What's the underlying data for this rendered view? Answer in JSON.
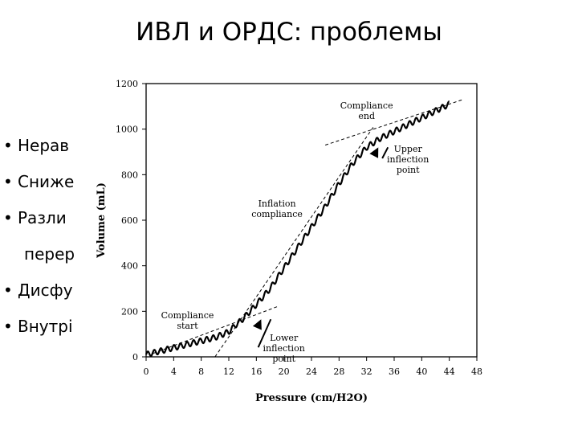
{
  "slide": {
    "title": "ИВЛ и ОРДС: проблемы",
    "bullets": [
      {
        "text": "Нерав"
      },
      {
        "text": "Сниже"
      },
      {
        "text": "Разли"
      },
      {
        "text": "перер",
        "continuation": true
      },
      {
        "text": "Дисфу"
      },
      {
        "text": "Внутрі"
      }
    ]
  },
  "chart_data": {
    "type": "line",
    "xlabel": "Pressure (cm/H2O)",
    "ylabel": "Volume (mL)",
    "xlim": [
      0,
      48
    ],
    "ylim": [
      0,
      1200
    ],
    "x_ticks": [
      "0",
      "4",
      "8",
      "12",
      "16",
      "20",
      "24",
      "28",
      "32",
      "36",
      "40",
      "44",
      "48"
    ],
    "y_ticks": [
      "0",
      "200",
      "400",
      "600",
      "800",
      "1000",
      "1200"
    ],
    "series": [
      {
        "values_xy": [
          [
            0,
            10
          ],
          [
            2,
            25
          ],
          [
            4,
            40
          ],
          [
            6,
            55
          ],
          [
            8,
            70
          ],
          [
            10,
            85
          ],
          [
            12,
            110
          ],
          [
            13,
            140
          ],
          [
            14,
            165
          ],
          [
            16,
            230
          ],
          [
            18,
            300
          ],
          [
            20,
            390
          ],
          [
            22,
            480
          ],
          [
            24,
            570
          ],
          [
            26,
            660
          ],
          [
            28,
            760
          ],
          [
            30,
            850
          ],
          [
            32,
            920
          ],
          [
            34,
            960
          ],
          [
            36,
            990
          ],
          [
            38,
            1020
          ],
          [
            40,
            1050
          ],
          [
            42,
            1080
          ],
          [
            44,
            1110
          ]
        ]
      }
    ],
    "tangent_lines": [
      {
        "from": [
          1,
          15
        ],
        "to": [
          19,
          220
        ]
      },
      {
        "from": [
          10,
          0
        ],
        "to": [
          33,
          1010
        ]
      },
      {
        "from": [
          26,
          930
        ],
        "to": [
          46,
          1130
        ]
      }
    ],
    "annotations": [
      {
        "text": [
          "Compliance",
          "end"
        ],
        "at": [
          32,
          1090
        ]
      },
      {
        "text": [
          "Upper",
          "inflection",
          "point"
        ],
        "at": [
          38,
          900
        ],
        "arrow_to": [
          33,
          920
        ]
      },
      {
        "text": [
          "Inflation",
          "compliance"
        ],
        "at": [
          19,
          660
        ]
      },
      {
        "text": [
          "Compliance",
          "start"
        ],
        "at": [
          6,
          170
        ]
      },
      {
        "text": [
          "Lower",
          "inflection",
          "point"
        ],
        "at": [
          20,
          70
        ],
        "arrow_to": [
          16,
          165
        ]
      }
    ],
    "grid": false,
    "legend": "none"
  }
}
